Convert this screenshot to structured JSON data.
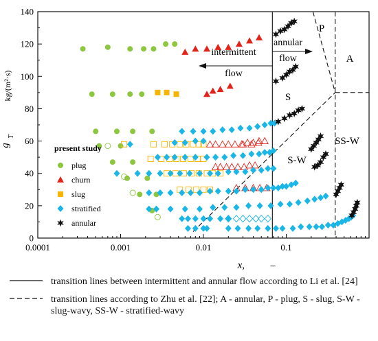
{
  "chart_data": {
    "type": "scatter",
    "xlabel": "x,",
    "xunit": "–",
    "ylabel": "g",
    "ylabel_sub": "T",
    "ylabel_unit": "kg/(m²·s)",
    "xscale": "log",
    "xlim": [
      0.0001,
      1
    ],
    "ylim": [
      0,
      140
    ],
    "x_ticks": [
      0.0001,
      0.001,
      0.01,
      0.1
    ],
    "x_tick_labels": [
      "0.0001",
      "0.001",
      "0.01",
      "0.1"
    ],
    "y_ticks": [
      0,
      20,
      40,
      60,
      80,
      100,
      120,
      140
    ],
    "y_tick_labels": [
      "0",
      "20",
      "40",
      "60",
      "80",
      "100",
      "120",
      "140"
    ],
    "legend_title": "present study",
    "legend_position": "left-middle",
    "colors": {
      "plug": "#8dc63f",
      "churn": "#e2231a",
      "slug": "#f7b500",
      "stratified": "#1ab6e6",
      "annular": "#111111"
    },
    "series": [
      {
        "name": "plug",
        "marker": "circle",
        "filled": [
          [
            0.00035,
            117
          ],
          [
            0.0007,
            118
          ],
          [
            0.0013,
            117
          ],
          [
            0.0019,
            117
          ],
          [
            0.0025,
            117
          ],
          [
            0.0035,
            120
          ],
          [
            0.0045,
            120
          ],
          [
            0.00045,
            89
          ],
          [
            0.0008,
            89
          ],
          [
            0.0013,
            89
          ],
          [
            0.0018,
            89
          ],
          [
            0.0005,
            66
          ],
          [
            0.0009,
            66
          ],
          [
            0.0014,
            66
          ],
          [
            0.0024,
            66
          ],
          [
            0.00055,
            57
          ],
          [
            0.001,
            57
          ],
          [
            0.0008,
            47
          ],
          [
            0.0014,
            47
          ],
          [
            0.0012,
            37
          ],
          [
            0.0021,
            37
          ],
          [
            0.0017,
            27
          ],
          [
            0.0027,
            27
          ],
          [
            0.0024,
            17
          ]
        ],
        "hollow": [
          [
            0.0007,
            57
          ],
          [
            0.0011,
            38
          ],
          [
            0.0014,
            28
          ],
          [
            0.0028,
            13
          ]
        ]
      },
      {
        "name": "churn",
        "marker": "triangle",
        "filled": [
          [
            0.006,
            115
          ],
          [
            0.008,
            117
          ],
          [
            0.011,
            117
          ],
          [
            0.015,
            118
          ],
          [
            0.02,
            118
          ],
          [
            0.027,
            120
          ],
          [
            0.036,
            122
          ],
          [
            0.047,
            124
          ],
          [
            0.011,
            89
          ],
          [
            0.013,
            91
          ],
          [
            0.016,
            92
          ],
          [
            0.021,
            94
          ]
        ],
        "hollow": [
          [
            0.012,
            58
          ],
          [
            0.014,
            58
          ],
          [
            0.017,
            58
          ],
          [
            0.02,
            58
          ],
          [
            0.024,
            58
          ],
          [
            0.029,
            58
          ],
          [
            0.034,
            59
          ],
          [
            0.04,
            59
          ],
          [
            0.047,
            60
          ],
          [
            0.055,
            60
          ],
          [
            0.014,
            44
          ],
          [
            0.016,
            44
          ],
          [
            0.019,
            44
          ],
          [
            0.022,
            44
          ],
          [
            0.026,
            44
          ],
          [
            0.031,
            44
          ],
          [
            0.036,
            45
          ],
          [
            0.042,
            45
          ],
          [
            0.025,
            31
          ],
          [
            0.032,
            31
          ],
          [
            0.04,
            31
          ],
          [
            0.048,
            31
          ],
          [
            0.058,
            31
          ],
          [
            0.03,
            58
          ],
          [
            0.038,
            58
          ],
          [
            0.046,
            59
          ]
        ]
      },
      {
        "name": "slug",
        "marker": "square",
        "filled": [
          [
            0.0028,
            90
          ],
          [
            0.0036,
            90
          ],
          [
            0.0047,
            89
          ]
        ],
        "hollow": [
          [
            0.0011,
            58
          ],
          [
            0.0025,
            58
          ],
          [
            0.0034,
            58
          ],
          [
            0.0042,
            58
          ],
          [
            0.0052,
            58
          ],
          [
            0.0062,
            58
          ],
          [
            0.0075,
            58
          ],
          [
            0.0088,
            58
          ],
          [
            0.01,
            58
          ],
          [
            0.0023,
            49
          ],
          [
            0.0031,
            49
          ],
          [
            0.0039,
            49
          ],
          [
            0.0047,
            49
          ],
          [
            0.0057,
            49
          ],
          [
            0.007,
            49
          ],
          [
            0.0085,
            49
          ],
          [
            0.01,
            49
          ],
          [
            0.0036,
            40
          ],
          [
            0.0046,
            40
          ],
          [
            0.0058,
            40
          ],
          [
            0.0072,
            40
          ],
          [
            0.0088,
            40
          ],
          [
            0.011,
            40
          ],
          [
            0.013,
            40
          ],
          [
            0.016,
            40
          ],
          [
            0.0052,
            30
          ],
          [
            0.0066,
            30
          ],
          [
            0.0082,
            30
          ],
          [
            0.01,
            30
          ],
          [
            0.012,
            30
          ]
        ]
      },
      {
        "name": "stratified",
        "marker": "diamond",
        "filled": [
          [
            0.0045,
            59
          ],
          [
            0.006,
            59
          ],
          [
            0.008,
            60
          ],
          [
            0.01,
            60
          ],
          [
            0.0013,
            58
          ],
          [
            0.0055,
            66
          ],
          [
            0.0075,
            66
          ],
          [
            0.01,
            66
          ],
          [
            0.013,
            66
          ],
          [
            0.017,
            67
          ],
          [
            0.022,
            67
          ],
          [
            0.028,
            68
          ],
          [
            0.036,
            68
          ],
          [
            0.045,
            69
          ],
          [
            0.055,
            70
          ],
          [
            0.065,
            71
          ],
          [
            0.072,
            71
          ],
          [
            0.0028,
            50
          ],
          [
            0.0036,
            50
          ],
          [
            0.0045,
            50
          ],
          [
            0.006,
            50
          ],
          [
            0.008,
            50
          ],
          [
            0.011,
            50
          ],
          [
            0.014,
            50
          ],
          [
            0.018,
            50
          ],
          [
            0.023,
            51
          ],
          [
            0.03,
            51
          ],
          [
            0.038,
            52
          ],
          [
            0.047,
            52
          ],
          [
            0.055,
            53
          ],
          [
            0.063,
            53
          ],
          [
            0.07,
            54
          ],
          [
            0.0009,
            40
          ],
          [
            0.0016,
            40
          ],
          [
            0.0022,
            40
          ],
          [
            0.003,
            40
          ],
          [
            0.004,
            40
          ],
          [
            0.0052,
            40
          ],
          [
            0.0068,
            40
          ],
          [
            0.009,
            40
          ],
          [
            0.012,
            40
          ],
          [
            0.015,
            40
          ],
          [
            0.02,
            41
          ],
          [
            0.025,
            41
          ],
          [
            0.032,
            41
          ],
          [
            0.04,
            42
          ],
          [
            0.05,
            42
          ],
          [
            0.06,
            43
          ],
          [
            0.07,
            43
          ],
          [
            0.0022,
            28
          ],
          [
            0.003,
            28
          ],
          [
            0.004,
            28
          ],
          [
            0.0055,
            28
          ],
          [
            0.007,
            28
          ],
          [
            0.009,
            28
          ],
          [
            0.012,
            29
          ],
          [
            0.015,
            29
          ],
          [
            0.02,
            29
          ],
          [
            0.025,
            29
          ],
          [
            0.032,
            30
          ],
          [
            0.04,
            30
          ],
          [
            0.05,
            30
          ],
          [
            0.06,
            31
          ],
          [
            0.07,
            31
          ],
          [
            0.08,
            31
          ],
          [
            0.09,
            32
          ],
          [
            0.1,
            32
          ],
          [
            0.115,
            33
          ],
          [
            0.13,
            34
          ],
          [
            0.0022,
            18
          ],
          [
            0.0027,
            18
          ],
          [
            0.004,
            18
          ],
          [
            0.006,
            18
          ],
          [
            0.009,
            18
          ],
          [
            0.013,
            19
          ],
          [
            0.018,
            19
          ],
          [
            0.025,
            19
          ],
          [
            0.035,
            20
          ],
          [
            0.048,
            20
          ],
          [
            0.065,
            20
          ],
          [
            0.085,
            21
          ],
          [
            0.11,
            21
          ],
          [
            0.14,
            22
          ],
          [
            0.18,
            23
          ],
          [
            0.22,
            24
          ],
          [
            0.26,
            25
          ],
          [
            0.3,
            26
          ],
          [
            0.0055,
            12
          ],
          [
            0.0065,
            12
          ],
          [
            0.008,
            12
          ],
          [
            0.01,
            12
          ],
          [
            0.012,
            12
          ],
          [
            0.016,
            12
          ],
          [
            0.02,
            12
          ],
          [
            0.0065,
            6
          ],
          [
            0.008,
            6
          ],
          [
            0.01,
            6
          ],
          [
            0.011,
            6
          ],
          [
            0.02,
            6
          ],
          [
            0.026,
            6
          ],
          [
            0.035,
            6
          ],
          [
            0.045,
            6
          ],
          [
            0.06,
            6
          ],
          [
            0.075,
            6
          ],
          [
            0.09,
            6
          ],
          [
            0.12,
            6
          ],
          [
            0.15,
            7
          ],
          [
            0.19,
            7
          ],
          [
            0.23,
            7
          ],
          [
            0.27,
            7
          ],
          [
            0.32,
            8
          ],
          [
            0.37,
            8
          ],
          [
            0.42,
            9
          ],
          [
            0.47,
            10
          ],
          [
            0.52,
            11
          ],
          [
            0.57,
            12
          ],
          [
            0.61,
            13
          ],
          [
            0.64,
            14
          ]
        ],
        "hollow": [
          [
            0.02,
            12
          ],
          [
            0.025,
            12
          ],
          [
            0.03,
            12
          ],
          [
            0.036,
            12
          ],
          [
            0.043,
            12
          ],
          [
            0.05,
            12
          ],
          [
            0.06,
            12
          ]
        ]
      },
      {
        "name": "annular",
        "marker": "star",
        "filled": [
          [
            0.075,
            126
          ],
          [
            0.085,
            128
          ],
          [
            0.095,
            129
          ],
          [
            0.105,
            131
          ],
          [
            0.115,
            133
          ],
          [
            0.125,
            134
          ],
          [
            0.075,
            97
          ],
          [
            0.09,
            99
          ],
          [
            0.1,
            101
          ],
          [
            0.11,
            103
          ],
          [
            0.12,
            104
          ],
          [
            0.13,
            106
          ],
          [
            0.08,
            72
          ],
          [
            0.095,
            74
          ],
          [
            0.11,
            76
          ],
          [
            0.125,
            77
          ],
          [
            0.14,
            79
          ],
          [
            0.155,
            80
          ],
          [
            0.2,
            55
          ],
          [
            0.215,
            57
          ],
          [
            0.23,
            59
          ],
          [
            0.245,
            61
          ],
          [
            0.26,
            63
          ],
          [
            0.22,
            44
          ],
          [
            0.24,
            45
          ],
          [
            0.26,
            47
          ],
          [
            0.28,
            50
          ],
          [
            0.3,
            52
          ],
          [
            0.4,
            27
          ],
          [
            0.42,
            29
          ],
          [
            0.44,
            31
          ],
          [
            0.46,
            33
          ],
          [
            0.62,
            14
          ],
          [
            0.65,
            16
          ],
          [
            0.68,
            18
          ],
          [
            0.7,
            20
          ],
          [
            0.72,
            22
          ]
        ],
        "hollow": []
      }
    ],
    "annotations": {
      "intermittent_label": "intermittent",
      "intermittent_flow_label": "flow",
      "annular_label": "annular",
      "annular_flow_label": "flow",
      "region_P": "P",
      "region_A": "A",
      "region_S": "S",
      "region_SW": "S-W",
      "region_SSW": "SS-W"
    }
  },
  "bottom_legend": [
    {
      "style": "solid",
      "text": "transition lines between intermittent and annular flow according to Li et al. [24]"
    },
    {
      "style": "dashed",
      "text": "transition lines according to Zhu et al. [22]; A - annular, P - plug, S - slug, S-W - slug-wavy, SS-W - stratified-wavy"
    }
  ]
}
